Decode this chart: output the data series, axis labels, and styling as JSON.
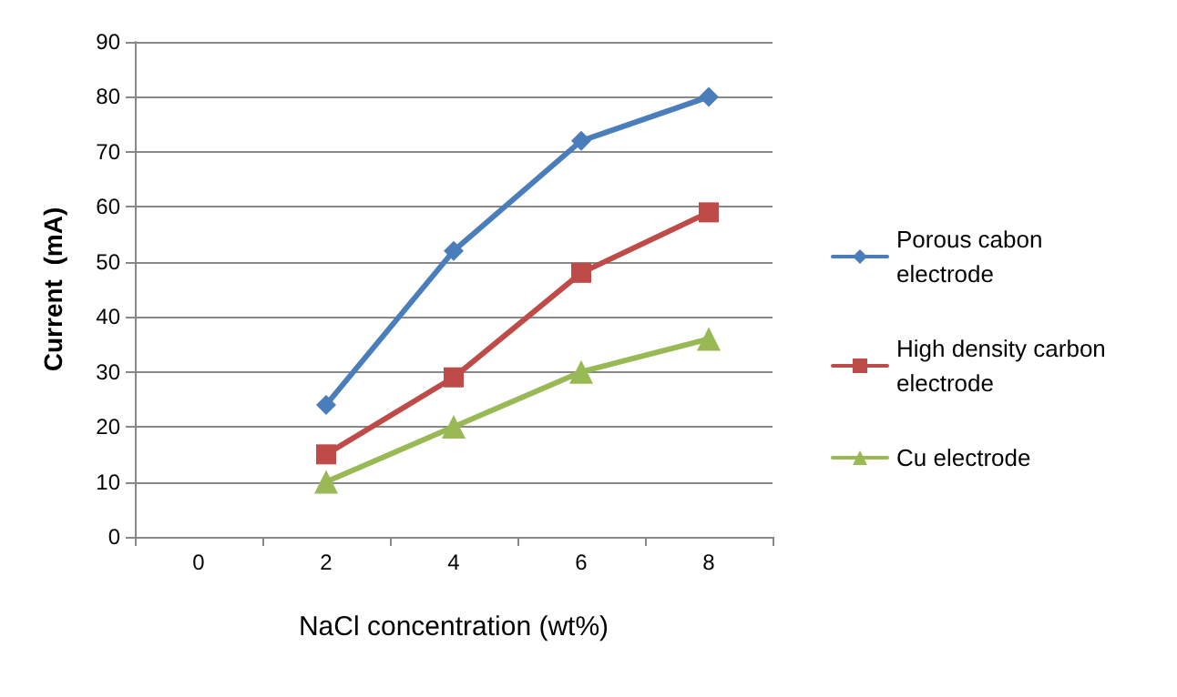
{
  "chart_data": {
    "type": "line",
    "xlabel": "NaCl concentration (wt%)",
    "ylabel": "Current  (mA)",
    "categories": [
      "0",
      "2",
      "4",
      "6",
      "8"
    ],
    "series": [
      {
        "name": "Porous cabon electrode",
        "color": "#4a7ebb",
        "marker": "diamond",
        "values": [
          null,
          24,
          52,
          72,
          80
        ]
      },
      {
        "name": "High density carbon electrode",
        "color": "#be4b48",
        "marker": "square",
        "values": [
          null,
          15,
          29,
          48,
          59
        ]
      },
      {
        "name": "Cu electrode",
        "color": "#98b954",
        "marker": "triangle",
        "values": [
          null,
          10,
          20,
          30,
          36
        ]
      }
    ],
    "ylim": [
      0,
      90
    ],
    "yticks": [
      0,
      10,
      20,
      30,
      40,
      50,
      60,
      70,
      80,
      90
    ],
    "grid": "y",
    "legend": "right",
    "line_style": "solid"
  }
}
